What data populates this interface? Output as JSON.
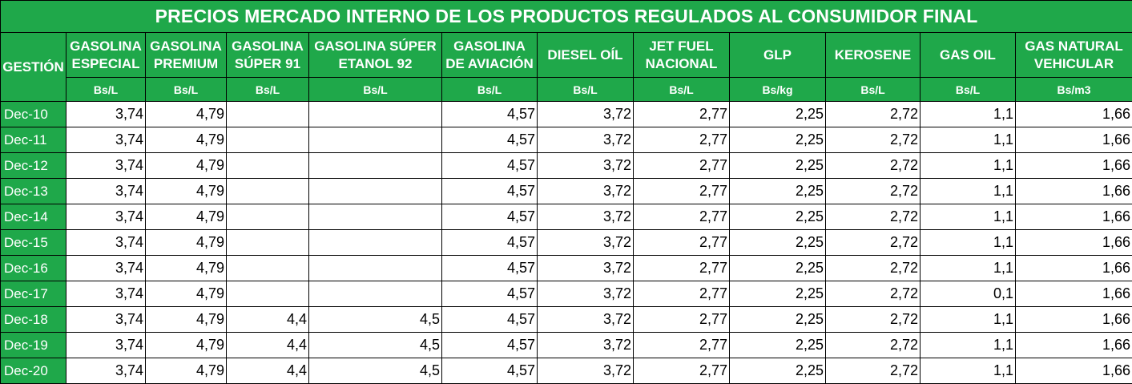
{
  "title": "PRECIOS MERCADO INTERNO DE LOS PRODUCTOS REGULADOS AL CONSUMIDOR FINAL",
  "gestion_label": "GESTIÓN",
  "columns": [
    {
      "line1": "GASOLINA",
      "line2": "ESPECIAL",
      "unit": "Bs/L"
    },
    {
      "line1": "GASOLINA",
      "line2": "PREMIUM",
      "unit": "Bs/L"
    },
    {
      "line1": "GASOLINA",
      "line2": "SÚPER 91",
      "unit": "Bs/L"
    },
    {
      "line1": "GASOLINA SÚPER",
      "line2": "ETANOL 92",
      "unit": "Bs/L"
    },
    {
      "line1": "GASOLINA",
      "line2": "DE AVIACIÓN",
      "unit": "Bs/L"
    },
    {
      "line1": "DIESEL OÍL",
      "line2": "",
      "unit": "Bs/L"
    },
    {
      "line1": "JET FUEL",
      "line2": "NACIONAL",
      "unit": "Bs/L"
    },
    {
      "line1": "GLP",
      "line2": "",
      "unit": "Bs/kg"
    },
    {
      "line1": "KEROSENE",
      "line2": "",
      "unit": "Bs/L"
    },
    {
      "line1": "GAS OIL",
      "line2": "",
      "unit": "Bs/L"
    },
    {
      "line1": "GAS NATURAL",
      "line2": "VEHICULAR",
      "unit": "Bs/m3"
    }
  ],
  "rows": [
    {
      "date": "Dec-10",
      "values": [
        "3,74",
        "4,79",
        "",
        "",
        "4,57",
        "3,72",
        "2,77",
        "2,25",
        "2,72",
        "1,1",
        "1,66"
      ]
    },
    {
      "date": "Dec-11",
      "values": [
        "3,74",
        "4,79",
        "",
        "",
        "4,57",
        "3,72",
        "2,77",
        "2,25",
        "2,72",
        "1,1",
        "1,66"
      ]
    },
    {
      "date": "Dec-12",
      "values": [
        "3,74",
        "4,79",
        "",
        "",
        "4,57",
        "3,72",
        "2,77",
        "2,25",
        "2,72",
        "1,1",
        "1,66"
      ]
    },
    {
      "date": "Dec-13",
      "values": [
        "3,74",
        "4,79",
        "",
        "",
        "4,57",
        "3,72",
        "2,77",
        "2,25",
        "2,72",
        "1,1",
        "1,66"
      ]
    },
    {
      "date": "Dec-14",
      "values": [
        "3,74",
        "4,79",
        "",
        "",
        "4,57",
        "3,72",
        "2,77",
        "2,25",
        "2,72",
        "1,1",
        "1,66"
      ]
    },
    {
      "date": "Dec-15",
      "values": [
        "3,74",
        "4,79",
        "",
        "",
        "4,57",
        "3,72",
        "2,77",
        "2,25",
        "2,72",
        "1,1",
        "1,66"
      ]
    },
    {
      "date": "Dec-16",
      "values": [
        "3,74",
        "4,79",
        "",
        "",
        "4,57",
        "3,72",
        "2,77",
        "2,25",
        "2,72",
        "1,1",
        "1,66"
      ]
    },
    {
      "date": "Dec-17",
      "values": [
        "3,74",
        "4,79",
        "",
        "",
        "4,57",
        "3,72",
        "2,77",
        "2,25",
        "2,72",
        "0,1",
        "1,66"
      ]
    },
    {
      "date": "Dec-18",
      "values": [
        "3,74",
        "4,79",
        "4,4",
        "4,5",
        "4,57",
        "3,72",
        "2,77",
        "2,25",
        "2,72",
        "1,1",
        "1,66"
      ]
    },
    {
      "date": "Dec-19",
      "values": [
        "3,74",
        "4,79",
        "4,4",
        "4,5",
        "4,57",
        "3,72",
        "2,77",
        "2,25",
        "2,72",
        "1,1",
        "1,66"
      ]
    },
    {
      "date": "Dec-20",
      "values": [
        "3,74",
        "4,79",
        "4,4",
        "4,5",
        "4,57",
        "3,72",
        "2,77",
        "2,25",
        "2,72",
        "1,1",
        "1,66"
      ]
    }
  ],
  "colors": {
    "header_green": "#1fa84a",
    "header_text": "#ffffff",
    "cell_bg": "#ffffff",
    "border": "#000000"
  }
}
